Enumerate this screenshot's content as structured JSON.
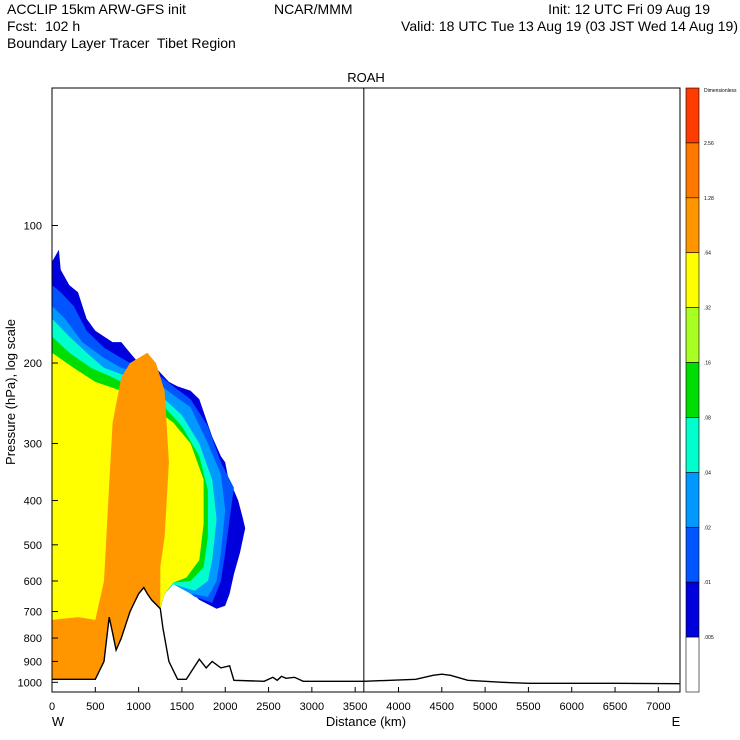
{
  "header": {
    "line1_left": "ACCLIP 15km ARW-GFS init",
    "line1_mid": "NCAR/MMM",
    "line1_right": "Init: 12 UTC Fri 09 Aug 19",
    "line2_left": "Fcst:  102 h",
    "line2_right": "Valid: 18 UTC Tue 13 Aug 19 (03 JST Wed 14 Aug 19)",
    "line3_left": "Boundary Layer Tracer  Tibet Region"
  },
  "chart_data": {
    "type": "heatmap",
    "title": "ROAH",
    "xlabel": "Distance (km)",
    "ylabel": "Pressure (hPa), log scale",
    "x_range": [
      0,
      7250
    ],
    "y_range_hpa": [
      1050,
      50
    ],
    "y_scale": "log",
    "x_ticks": [
      0,
      500,
      1000,
      1500,
      2000,
      2500,
      3000,
      3500,
      4000,
      4500,
      5000,
      5500,
      6000,
      6500,
      7000
    ],
    "y_ticks": [
      100,
      200,
      300,
      400,
      500,
      600,
      700,
      800,
      900,
      1000
    ],
    "x_end_labels": {
      "left": "W",
      "right": "E"
    },
    "marker_line_x_km": 3600,
    "colorbar": {
      "labels": [
        "Dimensionless",
        "2.56",
        "1.28",
        ".64",
        ".32",
        ".16",
        ".08",
        ".04",
        ".02",
        ".01",
        ".005"
      ],
      "colors": [
        "#ff3c00",
        "#ff7800",
        "#ff9600",
        "#ffff00",
        "#aaff22",
        "#00dd00",
        "#00ffcc",
        "#0099ff",
        "#0055ff",
        "#0000dd",
        "#ffffff"
      ]
    },
    "terrain_km_hpa": [
      [
        0,
        985
      ],
      [
        300,
        985
      ],
      [
        500,
        985
      ],
      [
        600,
        900
      ],
      [
        660,
        720
      ],
      [
        700,
        780
      ],
      [
        740,
        850
      ],
      [
        800,
        800
      ],
      [
        900,
        700
      ],
      [
        1000,
        640
      ],
      [
        1060,
        620
      ],
      [
        1100,
        640
      ],
      [
        1150,
        660
      ],
      [
        1250,
        690
      ],
      [
        1280,
        760
      ],
      [
        1350,
        900
      ],
      [
        1450,
        985
      ],
      [
        1550,
        985
      ],
      [
        1620,
        940
      ],
      [
        1700,
        890
      ],
      [
        1780,
        930
      ],
      [
        1850,
        900
      ],
      [
        1950,
        930
      ],
      [
        2050,
        920
      ],
      [
        2100,
        990
      ],
      [
        2450,
        995
      ],
      [
        2550,
        975
      ],
      [
        2600,
        990
      ],
      [
        2650,
        970
      ],
      [
        2700,
        980
      ],
      [
        2800,
        975
      ],
      [
        2900,
        995
      ],
      [
        3600,
        995
      ],
      [
        4200,
        985
      ],
      [
        4400,
        965
      ],
      [
        4500,
        960
      ],
      [
        4600,
        965
      ],
      [
        4800,
        990
      ],
      [
        5200,
        1000
      ],
      [
        5500,
        1005
      ],
      [
        6500,
        1005
      ],
      [
        7250,
        1007
      ]
    ],
    "tracer_field": [
      {
        "level": ".01",
        "color": "#0000dd",
        "region": [
          [
            0,
            985
          ],
          [
            0,
            120
          ],
          [
            80,
            113
          ],
          [
            100,
            125
          ],
          [
            200,
            135
          ],
          [
            300,
            140
          ],
          [
            400,
            160
          ],
          [
            500,
            170
          ],
          [
            600,
            175
          ],
          [
            700,
            180
          ],
          [
            800,
            180
          ],
          [
            900,
            190
          ],
          [
            1000,
            200
          ],
          [
            1100,
            200
          ],
          [
            1200,
            205
          ],
          [
            1350,
            220
          ],
          [
            1450,
            225
          ],
          [
            1600,
            230
          ],
          [
            1700,
            240
          ],
          [
            1850,
            290
          ],
          [
            1950,
            320
          ],
          [
            2000,
            330
          ],
          [
            2050,
            370
          ],
          [
            2100,
            380
          ],
          [
            2150,
            400
          ],
          [
            2200,
            435
          ],
          [
            2230,
            460
          ],
          [
            2170,
            520
          ],
          [
            2100,
            580
          ],
          [
            2050,
            640
          ],
          [
            2000,
            680
          ],
          [
            1900,
            690
          ],
          [
            1700,
            660
          ],
          [
            1550,
            620
          ],
          [
            1400,
            610
          ],
          [
            1300,
            640
          ],
          [
            1250,
            690
          ],
          [
            1150,
            660
          ],
          [
            1060,
            620
          ],
          [
            1000,
            640
          ],
          [
            900,
            700
          ],
          [
            800,
            800
          ],
          [
            740,
            850
          ],
          [
            700,
            780
          ],
          [
            660,
            720
          ],
          [
            600,
            900
          ],
          [
            500,
            985
          ]
        ]
      },
      {
        "level": ".02",
        "color": "#0055ff",
        "region": [
          [
            0,
            985
          ],
          [
            0,
            135
          ],
          [
            100,
            140
          ],
          [
            250,
            150
          ],
          [
            400,
            170
          ],
          [
            600,
            185
          ],
          [
            800,
            195
          ],
          [
            1000,
            205
          ],
          [
            1200,
            210
          ],
          [
            1400,
            225
          ],
          [
            1600,
            240
          ],
          [
            1800,
            275
          ],
          [
            1950,
            330
          ],
          [
            2100,
            375
          ],
          [
            2050,
            440
          ],
          [
            2000,
            520
          ],
          [
            1950,
            600
          ],
          [
            1850,
            670
          ],
          [
            1650,
            650
          ],
          [
            1500,
            620
          ],
          [
            1400,
            610
          ],
          [
            1300,
            640
          ],
          [
            1250,
            690
          ],
          [
            1150,
            660
          ],
          [
            1060,
            620
          ],
          [
            1000,
            640
          ],
          [
            900,
            700
          ],
          [
            800,
            800
          ],
          [
            740,
            850
          ],
          [
            700,
            780
          ],
          [
            660,
            720
          ],
          [
            600,
            900
          ],
          [
            500,
            985
          ]
        ]
      },
      {
        "level": ".04",
        "color": "#0099ff",
        "region": [
          [
            0,
            985
          ],
          [
            0,
            150
          ],
          [
            150,
            160
          ],
          [
            350,
            180
          ],
          [
            600,
            195
          ],
          [
            800,
            205
          ],
          [
            1000,
            210
          ],
          [
            1200,
            220
          ],
          [
            1400,
            235
          ],
          [
            1600,
            250
          ],
          [
            1800,
            300
          ],
          [
            1950,
            350
          ],
          [
            2000,
            420
          ],
          [
            1950,
            520
          ],
          [
            1900,
            600
          ],
          [
            1800,
            650
          ],
          [
            1600,
            640
          ],
          [
            1400,
            610
          ],
          [
            1300,
            640
          ],
          [
            1250,
            690
          ],
          [
            1150,
            660
          ],
          [
            1060,
            620
          ],
          [
            1000,
            640
          ],
          [
            900,
            700
          ],
          [
            800,
            800
          ],
          [
            740,
            850
          ],
          [
            700,
            780
          ],
          [
            660,
            720
          ],
          [
            600,
            900
          ],
          [
            500,
            985
          ]
        ]
      },
      {
        "level": ".08",
        "color": "#00ffcc",
        "region": [
          [
            0,
            985
          ],
          [
            0,
            160
          ],
          [
            200,
            175
          ],
          [
            400,
            190
          ],
          [
            600,
            205
          ],
          [
            900,
            215
          ],
          [
            1100,
            225
          ],
          [
            1300,
            240
          ],
          [
            1500,
            260
          ],
          [
            1700,
            300
          ],
          [
            1850,
            360
          ],
          [
            1900,
            440
          ],
          [
            1850,
            540
          ],
          [
            1800,
            600
          ],
          [
            1650,
            630
          ],
          [
            1400,
            610
          ],
          [
            1300,
            640
          ],
          [
            1250,
            690
          ],
          [
            1150,
            660
          ],
          [
            1060,
            620
          ],
          [
            1000,
            640
          ],
          [
            900,
            700
          ],
          [
            800,
            800
          ],
          [
            740,
            850
          ],
          [
            700,
            780
          ],
          [
            660,
            720
          ],
          [
            600,
            900
          ],
          [
            500,
            985
          ]
        ]
      },
      {
        "level": ".16",
        "color": "#00dd00",
        "region": [
          [
            0,
            985
          ],
          [
            0,
            175
          ],
          [
            200,
            190
          ],
          [
            450,
            205
          ],
          [
            700,
            215
          ],
          [
            1000,
            230
          ],
          [
            1300,
            250
          ],
          [
            1500,
            275
          ],
          [
            1700,
            320
          ],
          [
            1800,
            380
          ],
          [
            1800,
            480
          ],
          [
            1750,
            560
          ],
          [
            1600,
            600
          ],
          [
            1400,
            605
          ],
          [
            1300,
            640
          ],
          [
            1250,
            690
          ],
          [
            1150,
            660
          ],
          [
            1060,
            620
          ],
          [
            1000,
            640
          ],
          [
            900,
            700
          ],
          [
            800,
            800
          ],
          [
            740,
            850
          ],
          [
            700,
            780
          ],
          [
            660,
            720
          ],
          [
            600,
            900
          ],
          [
            500,
            985
          ]
        ]
      },
      {
        "level": ".32",
        "color": "#ffff00",
        "region": [
          [
            0,
            985
          ],
          [
            0,
            190
          ],
          [
            250,
            205
          ],
          [
            500,
            220
          ],
          [
            800,
            230
          ],
          [
            1100,
            245
          ],
          [
            1400,
            270
          ],
          [
            1600,
            300
          ],
          [
            1750,
            360
          ],
          [
            1750,
            450
          ],
          [
            1700,
            540
          ],
          [
            1550,
            590
          ],
          [
            1400,
            605
          ],
          [
            1300,
            640
          ],
          [
            1250,
            690
          ],
          [
            1150,
            660
          ],
          [
            1060,
            620
          ],
          [
            1000,
            640
          ],
          [
            900,
            700
          ],
          [
            800,
            800
          ],
          [
            740,
            850
          ],
          [
            700,
            780
          ],
          [
            660,
            720
          ],
          [
            600,
            900
          ],
          [
            500,
            985
          ]
        ]
      },
      {
        "level": ".64",
        "color": "#ff9600",
        "region": [
          [
            0,
            985
          ],
          [
            0,
            730
          ],
          [
            300,
            720
          ],
          [
            500,
            730
          ],
          [
            600,
            600
          ],
          [
            650,
            400
          ],
          [
            700,
            270
          ],
          [
            800,
            215
          ],
          [
            900,
            200
          ],
          [
            1000,
            195
          ],
          [
            1100,
            190
          ],
          [
            1200,
            200
          ],
          [
            1300,
            230
          ],
          [
            1350,
            330
          ],
          [
            1300,
            480
          ],
          [
            1250,
            560
          ],
          [
            1250,
            690
          ],
          [
            1150,
            660
          ],
          [
            1060,
            620
          ],
          [
            1000,
            640
          ],
          [
            900,
            700
          ],
          [
            800,
            800
          ],
          [
            740,
            850
          ],
          [
            700,
            780
          ],
          [
            660,
            720
          ],
          [
            600,
            900
          ],
          [
            500,
            985
          ]
        ]
      }
    ]
  }
}
